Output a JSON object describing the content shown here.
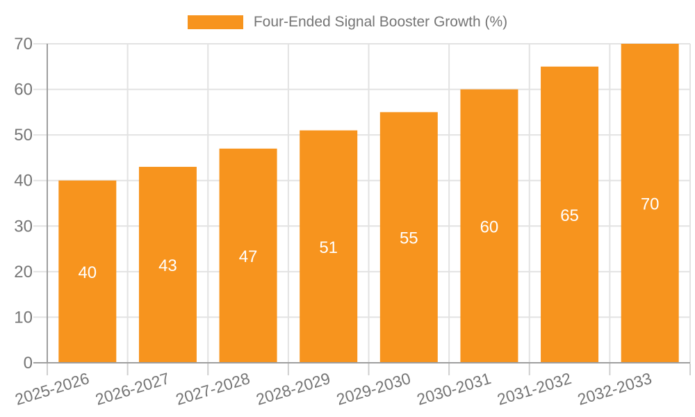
{
  "chart_data": {
    "type": "bar",
    "categories": [
      "2025-2026",
      "2026-2027",
      "2027-2028",
      "2028-2029",
      "2029-2030",
      "2030-2031",
      "2031-2032",
      "2032-2033"
    ],
    "series": [
      {
        "name": "Four-Ended Signal Booster Growth (%)",
        "values": [
          40,
          43,
          47,
          51,
          55,
          60,
          65,
          70
        ]
      }
    ],
    "value_labels": [
      "40",
      "43",
      "47",
      "51",
      "55",
      "60",
      "65",
      "70"
    ],
    "value_labels_shown": true,
    "xlabel": "",
    "ylabel": "",
    "ylim": [
      0,
      70
    ],
    "yticks": [
      0,
      10,
      20,
      30,
      40,
      50,
      60,
      70
    ],
    "grid": true,
    "legend_position": "top",
    "x_label_rotation_deg": -17,
    "colors": {
      "bar": "#F7941E",
      "value_label": "#FFFFFF",
      "axis_text": "#757575",
      "legend_text": "#757575",
      "gridline": "#E2E2E2",
      "tick": "#CFCFCF",
      "axis_line": "#9E9E9E",
      "background": "#FFFFFF"
    }
  }
}
